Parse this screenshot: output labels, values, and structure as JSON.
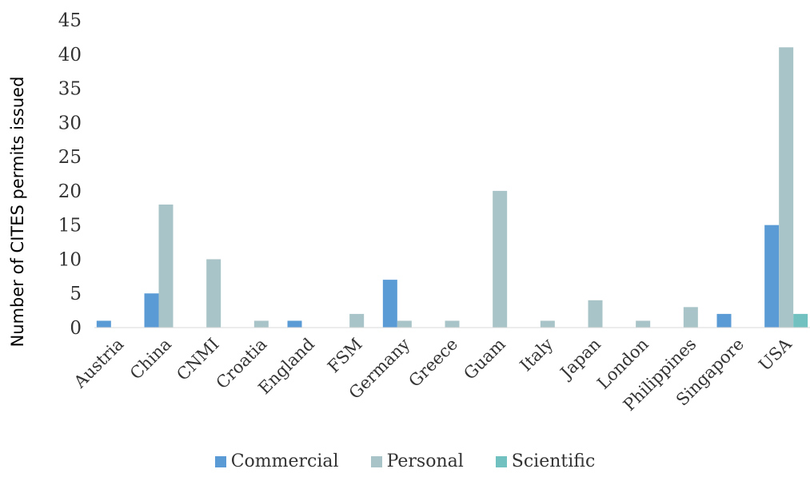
{
  "chart_data": {
    "type": "bar",
    "title": "",
    "xlabel": "",
    "ylabel": "Number of CITES permits issued",
    "ylim": [
      0,
      45
    ],
    "yticks": [
      0,
      5,
      10,
      15,
      20,
      25,
      30,
      35,
      40,
      45
    ],
    "categories": [
      "Austria",
      "China",
      "CNMI",
      "Croatia",
      "England",
      "FSM",
      "Germany",
      "Greece",
      "Guam",
      "Italy",
      "Japan",
      "London",
      "Philippines",
      "Singapore",
      "USA"
    ],
    "series": [
      {
        "name": "Commercial",
        "color": "#5b9bd5",
        "values": [
          1,
          5,
          0,
          0,
          1,
          0,
          7,
          0,
          0,
          0,
          0,
          0,
          0,
          2,
          15
        ]
      },
      {
        "name": "Personal",
        "color": "#a9c4c8",
        "values": [
          0,
          18,
          10,
          1,
          0,
          2,
          1,
          1,
          20,
          1,
          4,
          1,
          3,
          0,
          41
        ]
      },
      {
        "name": "Scientific",
        "color": "#70c1c0",
        "values": [
          0,
          0,
          0,
          0,
          0,
          0,
          0,
          0,
          0,
          0,
          0,
          0,
          0,
          0,
          2
        ]
      }
    ],
    "grid": false,
    "legend_position": "bottom"
  }
}
